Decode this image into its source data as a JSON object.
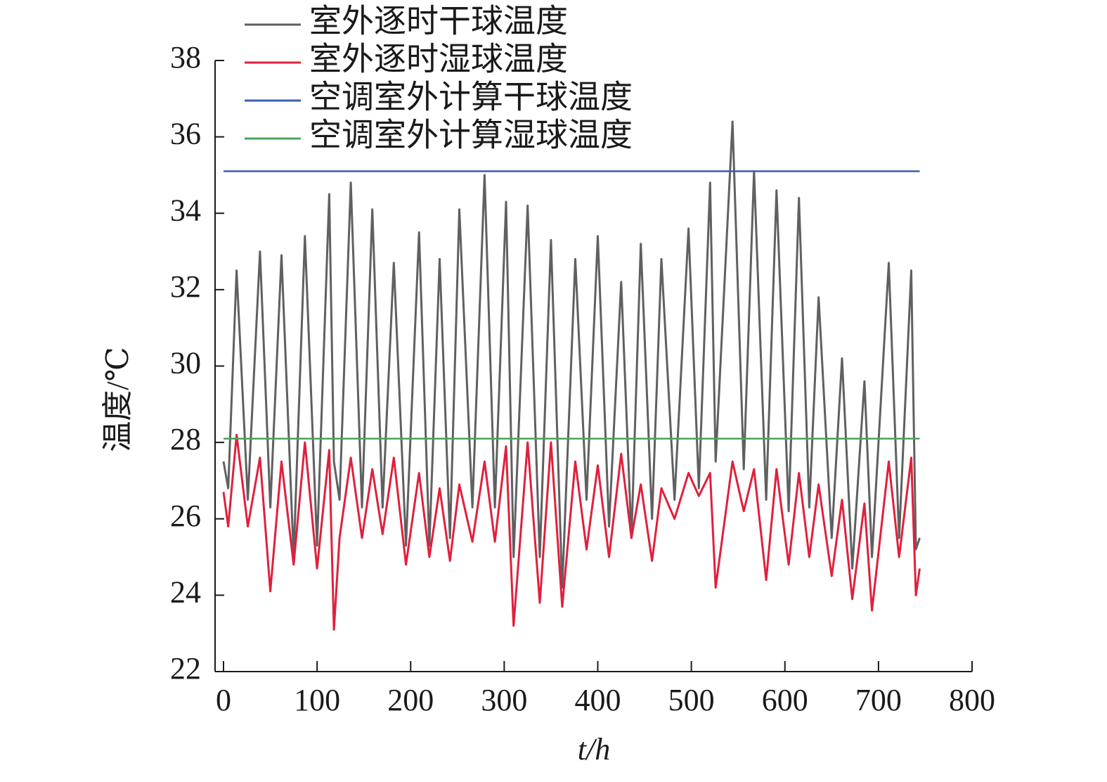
{
  "chart_data": {
    "type": "line",
    "ylabel": "温度/℃",
    "xlabel": "t/h",
    "xlim": [
      0,
      800
    ],
    "xticks": [
      0,
      100,
      200,
      300,
      400,
      500,
      600,
      700,
      800
    ],
    "ylim": [
      22,
      38
    ],
    "yticks": [
      22,
      24,
      26,
      28,
      30,
      32,
      34,
      36,
      38
    ],
    "legend": "top-left",
    "series": [
      {
        "name": "室外逐时干球温度",
        "color": "#606060",
        "x": [
          0,
          5,
          14,
          26,
          39,
          50,
          62,
          75,
          87,
          100,
          113,
          118,
          124,
          136,
          148,
          159,
          170,
          182,
          195,
          209,
          220,
          231,
          242,
          252,
          266,
          279,
          290,
          302,
          310,
          325,
          338,
          350,
          362,
          376,
          388,
          400,
          412,
          425,
          436,
          446,
          458,
          468,
          482,
          497,
          508,
          520,
          526,
          544,
          556,
          567,
          580,
          591,
          604,
          615,
          626,
          636,
          650,
          661,
          672,
          685,
          693,
          711,
          722,
          735,
          740,
          744
        ],
        "values": [
          27.5,
          26.8,
          32.5,
          26.5,
          33.0,
          26.3,
          32.9,
          25.0,
          33.4,
          25.3,
          34.5,
          27.5,
          26.5,
          34.8,
          26.3,
          34.1,
          26.3,
          32.7,
          25.3,
          33.5,
          25.3,
          32.8,
          25.5,
          34.1,
          26.3,
          35.0,
          26.3,
          34.3,
          25.0,
          34.2,
          25.0,
          33.3,
          24.2,
          32.8,
          26.5,
          33.4,
          25.8,
          32.2,
          25.5,
          33.2,
          26.0,
          32.8,
          26.5,
          33.6,
          26.8,
          34.8,
          27.5,
          36.4,
          27.3,
          35.1,
          26.5,
          34.6,
          26.2,
          34.4,
          26.3,
          31.8,
          25.5,
          30.2,
          24.7,
          29.6,
          25.0,
          32.7,
          25.5,
          32.5,
          25.2,
          25.5
        ]
      },
      {
        "name": "室外逐时湿球温度",
        "color": "#e0203c",
        "x": [
          0,
          5,
          14,
          26,
          39,
          50,
          62,
          75,
          87,
          100,
          113,
          118,
          124,
          136,
          148,
          159,
          170,
          182,
          195,
          209,
          220,
          231,
          242,
          252,
          266,
          279,
          290,
          302,
          310,
          325,
          338,
          350,
          362,
          376,
          388,
          400,
          412,
          425,
          436,
          446,
          458,
          468,
          482,
          497,
          508,
          520,
          526,
          544,
          556,
          567,
          580,
          591,
          604,
          615,
          626,
          636,
          650,
          661,
          672,
          685,
          693,
          711,
          722,
          735,
          740,
          744
        ],
        "values": [
          26.7,
          25.8,
          28.2,
          25.8,
          27.6,
          24.1,
          27.5,
          24.8,
          28.0,
          24.7,
          27.8,
          23.1,
          25.5,
          27.6,
          25.5,
          27.3,
          25.6,
          27.6,
          24.8,
          27.2,
          25.0,
          26.8,
          24.9,
          26.9,
          25.4,
          27.5,
          25.4,
          27.9,
          23.2,
          28.0,
          23.8,
          28.0,
          23.7,
          27.5,
          25.2,
          27.4,
          25.0,
          27.7,
          25.5,
          26.9,
          24.9,
          26.8,
          26.0,
          27.2,
          26.6,
          27.2,
          24.2,
          27.5,
          26.2,
          27.3,
          24.4,
          27.3,
          24.8,
          27.2,
          25.0,
          26.9,
          24.5,
          26.5,
          23.9,
          26.4,
          23.6,
          27.5,
          25.0,
          27.6,
          24.0,
          24.7
        ]
      },
      {
        "name": "空调室外计算干球温度",
        "color": "#3a5faa",
        "x": [
          0,
          744
        ],
        "values": [
          35.1,
          35.1
        ]
      },
      {
        "name": "空调室外计算湿球温度",
        "color": "#4aa55a",
        "x": [
          0,
          744
        ],
        "values": [
          28.1,
          28.1
        ]
      }
    ]
  }
}
